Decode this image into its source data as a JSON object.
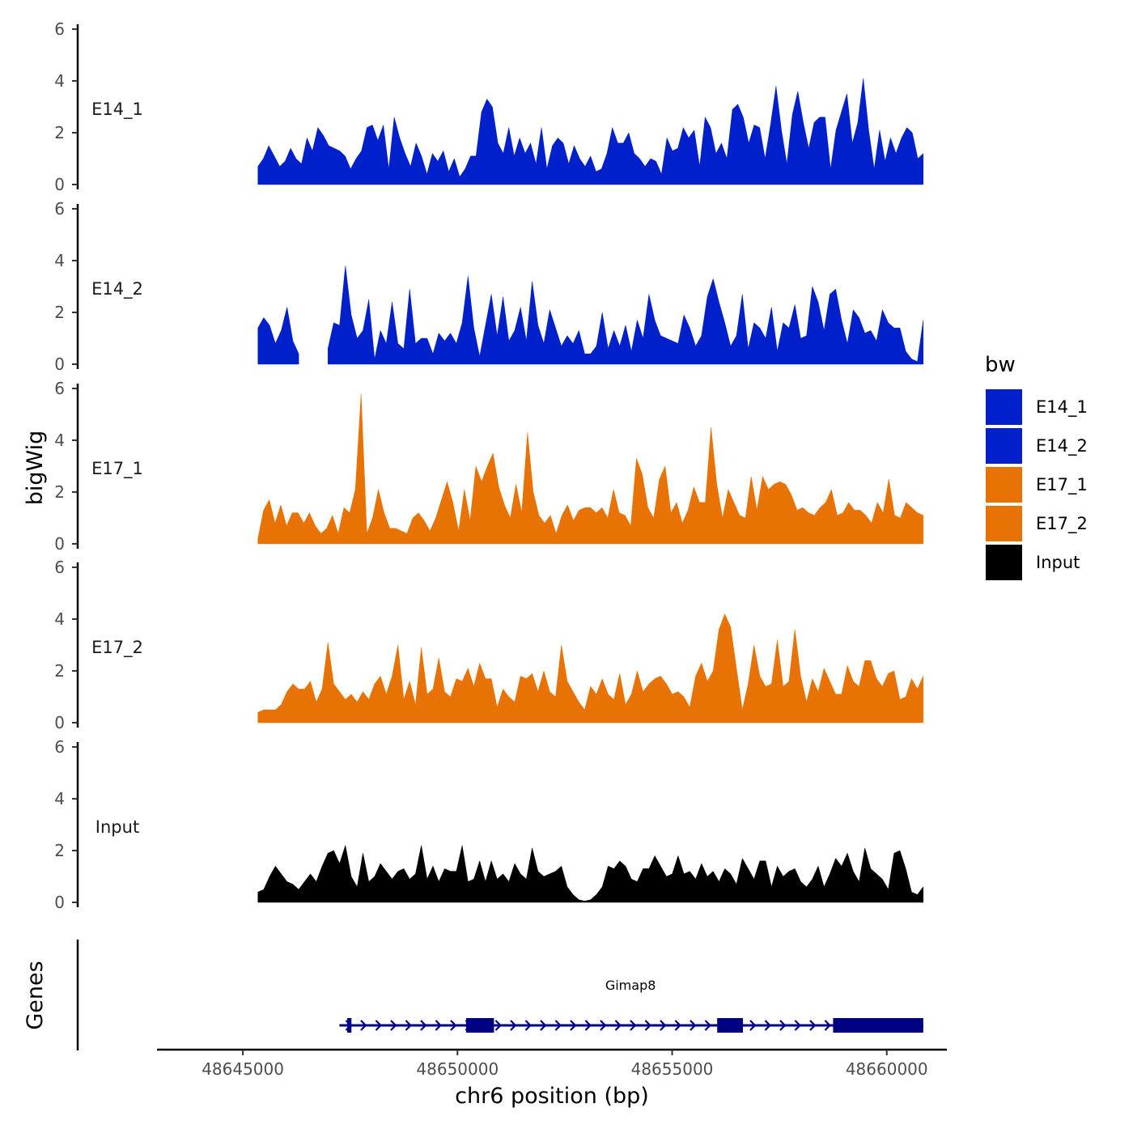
{
  "chart_data": {
    "type": "area",
    "ylabel": "bigWig",
    "xlabel": "chr6 position (bp)",
    "xlim": [
      48643000,
      48661400
    ],
    "ylim": [
      0,
      6
    ],
    "x_ticks": [
      48645000,
      48650000,
      48655000,
      48660000
    ],
    "x_tick_labels": [
      "48645000",
      "48650000",
      "48655000",
      "48660000"
    ],
    "y_ticks": [
      0,
      2,
      4,
      6
    ],
    "y_tick_labels": [
      "0",
      "2",
      "4",
      "6"
    ],
    "region_start": 48645350,
    "region_end": 48660850,
    "tracks": [
      {
        "name": "E14_1",
        "color": "#0020CC",
        "values": [
          0.7,
          1.0,
          1.5,
          1.1,
          0.7,
          0.9,
          1.4,
          1.0,
          0.8,
          1.8,
          1.3,
          2.2,
          1.9,
          1.5,
          1.4,
          1.3,
          1.1,
          0.6,
          1.0,
          1.3,
          2.2,
          2.3,
          1.7,
          2.3,
          0.6,
          2.6,
          1.8,
          1.2,
          0.7,
          1.6,
          1.1,
          0.4,
          1.2,
          0.9,
          1.3,
          0.5,
          1.0,
          0.3,
          0.6,
          1.1,
          1.1,
          2.8,
          3.3,
          3.0,
          1.6,
          1.2,
          2.2,
          1.1,
          1.8,
          1.2,
          1.6,
          0.8,
          2.2,
          0.6,
          1.5,
          1.8,
          1.6,
          0.8,
          1.5,
          1.0,
          0.7,
          1.1,
          0.5,
          0.6,
          1.2,
          2.2,
          1.6,
          1.6,
          2.0,
          1.2,
          1.0,
          0.7,
          1.0,
          0.9,
          0.4,
          1.8,
          1.3,
          1.4,
          2.2,
          1.8,
          2.1,
          0.7,
          2.6,
          2.2,
          1.2,
          1.6,
          1.0,
          2.9,
          3.1,
          2.6,
          1.6,
          2.3,
          2.2,
          1.0,
          2.3,
          3.8,
          2.1,
          0.8,
          2.7,
          3.6,
          2.4,
          1.4,
          2.4,
          2.6,
          2.6,
          0.6,
          2.1,
          2.8,
          3.5,
          1.6,
          2.4,
          4.1,
          2.1,
          0.6,
          2.1,
          0.9,
          1.8,
          1.2,
          1.8,
          2.2,
          2.0,
          1.0,
          1.2
        ]
      },
      {
        "name": "E14_2",
        "color": "#0020CC",
        "values": [
          1.4,
          1.8,
          1.5,
          0.8,
          1.3,
          2.2,
          0.9,
          0.4,
          null,
          null,
          null,
          null,
          0.6,
          1.6,
          1.5,
          3.8,
          1.9,
          1.0,
          1.3,
          2.5,
          0.2,
          1.3,
          0.8,
          2.4,
          0.8,
          0.6,
          2.9,
          0.8,
          1.0,
          1.0,
          0.4,
          1.2,
          0.9,
          1.2,
          0.8,
          1.6,
          3.4,
          1.4,
          0.3,
          1.5,
          2.7,
          1.1,
          2.6,
          0.9,
          1.3,
          2.2,
          0.9,
          3.2,
          1.5,
          0.8,
          2.1,
          1.4,
          0.7,
          1.1,
          0.8,
          1.3,
          0.4,
          0.4,
          0.7,
          2.0,
          0.6,
          1.3,
          0.7,
          1.5,
          0.5,
          1.7,
          1.0,
          2.7,
          1.7,
          1.1,
          1.0,
          0.9,
          0.8,
          1.9,
          1.4,
          0.7,
          1.1,
          2.6,
          3.3,
          2.4,
          1.6,
          0.7,
          1.1,
          2.7,
          0.6,
          1.6,
          1.4,
          1.0,
          2.2,
          0.5,
          1.6,
          1.4,
          2.3,
          1.0,
          1.1,
          3.0,
          2.4,
          1.3,
          2.7,
          2.9,
          1.7,
          0.8,
          2.1,
          1.8,
          1.2,
          1.3,
          0.9,
          2.1,
          1.6,
          1.4,
          1.4,
          0.5,
          0.2,
          0.1,
          1.7
        ]
      },
      {
        "name": "E17_1",
        "color": "#E87304",
        "values": [
          0.2,
          1.3,
          1.7,
          0.8,
          1.5,
          0.7,
          1.2,
          1.2,
          0.8,
          1.2,
          0.7,
          0.4,
          0.6,
          1.1,
          0.4,
          1.4,
          1.2,
          2.1,
          5.8,
          0.4,
          1.0,
          2.1,
          1.2,
          0.6,
          0.6,
          0.5,
          0.4,
          1.0,
          1.2,
          0.9,
          0.5,
          1.0,
          1.7,
          2.4,
          1.6,
          0.5,
          2.1,
          0.9,
          3.0,
          2.4,
          3.0,
          3.5,
          2.2,
          1.5,
          1.0,
          2.3,
          1.2,
          4.3,
          2.0,
          1.1,
          0.8,
          1.1,
          0.4,
          1.1,
          1.5,
          0.9,
          1.3,
          1.4,
          1.4,
          1.2,
          1.4,
          1.0,
          2.1,
          1.2,
          1.1,
          0.7,
          3.3,
          2.7,
          1.4,
          1.0,
          2.5,
          3.0,
          1.2,
          1.6,
          0.8,
          1.3,
          2.2,
          1.6,
          1.6,
          4.5,
          2.3,
          1.0,
          2.1,
          1.6,
          1.1,
          1.0,
          2.6,
          1.3,
          2.6,
          2.1,
          2.3,
          2.4,
          2.3,
          1.9,
          1.3,
          1.4,
          1.2,
          1.1,
          1.4,
          1.6,
          2.1,
          1.1,
          1.2,
          1.6,
          1.3,
          1.3,
          1.1,
          0.8,
          1.6,
          1.2,
          2.5,
          1.1,
          1.0,
          1.6,
          1.4,
          1.2,
          1.1
        ]
      },
      {
        "name": "E17_2",
        "color": "#E87304",
        "values": [
          0.4,
          0.5,
          0.5,
          0.5,
          0.7,
          1.2,
          1.5,
          1.3,
          1.3,
          1.6,
          0.8,
          1.3,
          3.1,
          1.5,
          1.2,
          0.9,
          1.1,
          0.8,
          1.2,
          0.9,
          1.5,
          1.8,
          1.1,
          1.8,
          3.0,
          0.9,
          1.6,
          0.7,
          2.9,
          1.1,
          1.3,
          2.5,
          1.2,
          1.0,
          1.7,
          1.6,
          2.1,
          1.4,
          2.3,
          1.7,
          1.7,
          0.6,
          1.3,
          1.0,
          0.8,
          1.8,
          1.7,
          1.9,
          1.2,
          2.0,
          1.2,
          1.0,
          3.0,
          1.6,
          1.2,
          0.8,
          0.5,
          1.4,
          1.1,
          1.7,
          1.1,
          0.9,
          1.9,
          0.7,
          1.1,
          2.0,
          1.2,
          1.5,
          1.7,
          1.8,
          1.5,
          1.1,
          1.2,
          1.0,
          0.6,
          1.8,
          2.3,
          1.6,
          2.0,
          3.6,
          4.2,
          3.7,
          2.1,
          0.5,
          1.5,
          3.0,
          1.8,
          1.4,
          1.5,
          3.2,
          1.4,
          1.6,
          3.6,
          1.8,
          0.8,
          1.7,
          1.2,
          2.1,
          1.6,
          1.1,
          1.1,
          2.2,
          1.6,
          1.4,
          2.4,
          2.4,
          1.7,
          1.4,
          1.9,
          2.0,
          0.9,
          1.0,
          1.7,
          1.3,
          1.8
        ]
      },
      {
        "name": "Input",
        "color": "#000000",
        "values": [
          0.4,
          0.5,
          1.0,
          1.4,
          1.1,
          0.8,
          0.7,
          0.5,
          0.8,
          1.1,
          0.8,
          1.4,
          1.9,
          2.0,
          1.5,
          2.2,
          1.0,
          0.6,
          1.9,
          0.8,
          1.0,
          1.5,
          1.2,
          0.9,
          1.2,
          1.3,
          0.9,
          1.1,
          2.2,
          0.9,
          1.4,
          0.8,
          1.3,
          1.2,
          1.2,
          2.2,
          0.8,
          0.9,
          1.6,
          0.8,
          1.6,
          0.9,
          1.1,
          0.8,
          1.5,
          1.1,
          0.9,
          2.1,
          1.2,
          1.0,
          1.1,
          1.2,
          1.4,
          0.6,
          0.3,
          0.1,
          0.05,
          0.1,
          0.3,
          0.6,
          1.4,
          1.3,
          1.6,
          1.4,
          0.9,
          0.8,
          1.3,
          1.3,
          1.8,
          1.4,
          1.0,
          1.1,
          1.8,
          1.1,
          1.2,
          0.9,
          1.5,
          1.0,
          1.2,
          0.8,
          1.3,
          1.1,
          0.7,
          1.7,
          1.3,
          0.9,
          1.6,
          1.6,
          0.6,
          1.4,
          1.0,
          1.2,
          1.3,
          0.8,
          0.6,
          0.9,
          1.4,
          0.6,
          1.1,
          1.7,
          1.4,
          1.9,
          1.2,
          0.8,
          2.1,
          1.3,
          1.1,
          0.9,
          0.5,
          1.9,
          2.0,
          1.3,
          0.4,
          0.3,
          0.6
        ]
      }
    ],
    "genes": [
      {
        "name": "Gimap8",
        "start": 48647250,
        "end": 48660850,
        "color": "#000080",
        "exons": [
          [
            48647430,
            48647530
          ],
          [
            48650200,
            48650850
          ],
          [
            48656050,
            48656650
          ],
          [
            48658750,
            48660850
          ]
        ],
        "strand": "+"
      }
    ],
    "gene_track_label": "Genes",
    "legend": {
      "title": "bw",
      "entries": [
        {
          "label": "E14_1",
          "color": "#0020CC"
        },
        {
          "label": "E14_2",
          "color": "#0020CC"
        },
        {
          "label": "E17_1",
          "color": "#E87304"
        },
        {
          "label": "E17_2",
          "color": "#E87304"
        },
        {
          "label": "Input",
          "color": "#000000"
        }
      ]
    }
  }
}
